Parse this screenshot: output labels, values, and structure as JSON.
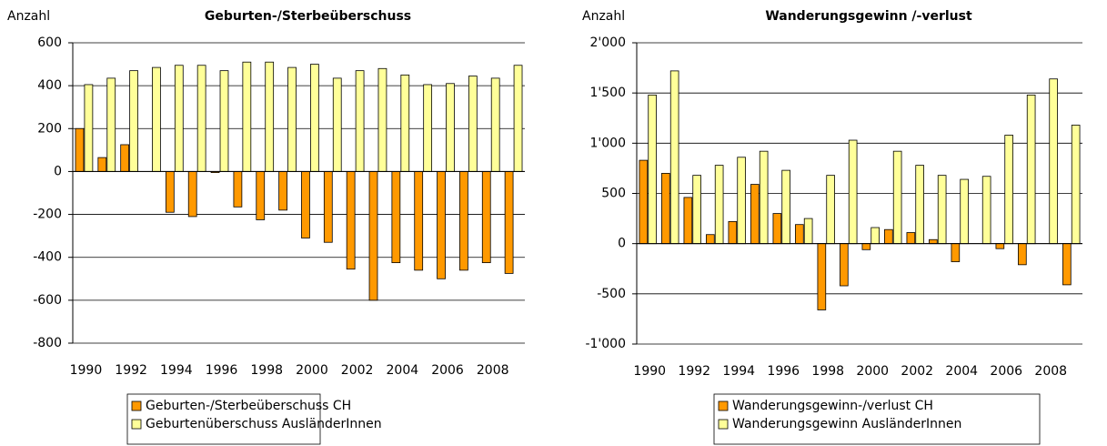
{
  "chart_data": [
    {
      "type": "bar",
      "title": "Geburten-/Sterbeüberschuss",
      "ylabel": "Anzahl",
      "categories": [
        "1990",
        null,
        "1992",
        null,
        "1994",
        null,
        "1996",
        null,
        "1998",
        null,
        "2000",
        null,
        "2002",
        null,
        "2004",
        null,
        "2006",
        null,
        "2008",
        null
      ],
      "series": [
        {
          "name": "Geburten-/Sterbeüberschuss CH",
          "color": "#ff9900",
          "values": [
            200,
            65,
            125,
            0,
            -190,
            -210,
            -5,
            -165,
            -225,
            -180,
            -310,
            -330,
            -455,
            -600,
            -425,
            -460,
            -500,
            -460,
            -425,
            -475
          ]
        },
        {
          "name": "Geburtenüberschuss AusländerInnen",
          "color": "#ffff99",
          "values": [
            405,
            435,
            470,
            485,
            495,
            495,
            470,
            510,
            510,
            485,
            500,
            435,
            470,
            480,
            450,
            405,
            410,
            445,
            435,
            495
          ]
        }
      ],
      "ylim": [
        -800,
        600
      ],
      "yticks": [
        -800,
        -600,
        -400,
        -200,
        0,
        200,
        400,
        600
      ],
      "grid": true,
      "legend": "bottom"
    },
    {
      "type": "bar",
      "title": "Wanderungsgewinn /-verlust",
      "ylabel": "Anzahl",
      "categories": [
        "1990",
        null,
        "1992",
        null,
        "1994",
        null,
        "1996",
        null,
        "1998",
        null,
        "2000",
        null,
        "2002",
        null,
        "2004",
        null,
        "2006",
        null,
        "2008",
        null
      ],
      "series": [
        {
          "name": "Wanderungsgewinn-/verlust CH",
          "color": "#ff9900",
          "values": [
            830,
            700,
            460,
            90,
            220,
            590,
            300,
            190,
            -660,
            -420,
            -60,
            140,
            110,
            40,
            -180,
            0,
            -50,
            -210,
            0,
            -410
          ]
        },
        {
          "name": "Wanderungsgewinn AusländerInnen",
          "color": "#ffff99",
          "values": [
            1480,
            1720,
            680,
            780,
            860,
            920,
            730,
            250,
            680,
            1030,
            160,
            920,
            780,
            680,
            640,
            670,
            1080,
            1480,
            1640,
            1180
          ]
        }
      ],
      "ylim": [
        -1000,
        2000
      ],
      "yticks": [
        {
          "value": -1000,
          "label": "-1'000"
        },
        -500,
        0,
        500,
        {
          "value": 1000,
          "label": "1'000"
        },
        {
          "value": 1500,
          "label": "1'500"
        },
        {
          "value": 2000,
          "label": "2'000"
        }
      ],
      "grid": true,
      "legend": "bottom"
    }
  ]
}
